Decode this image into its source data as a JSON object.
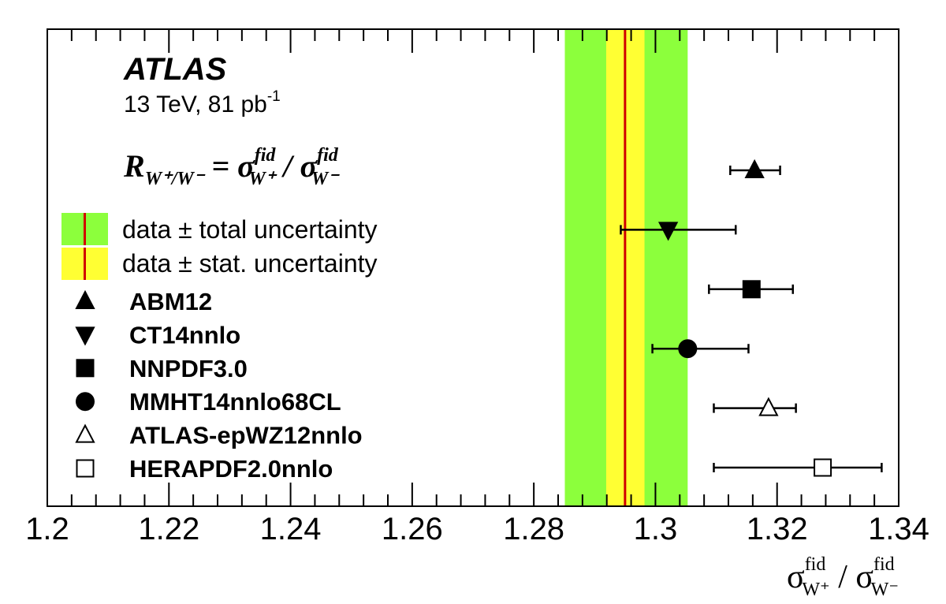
{
  "chart_data": {
    "type": "scatter",
    "title": "",
    "experiment": "ATLAS",
    "energy_label": "13 TeV, 81 pb",
    "lumi_superscript": "-1",
    "formula": {
      "lhs": "R",
      "lhs_sub": "W⁺/W⁻",
      "equals": " = σ",
      "num_sup": "fid",
      "num_sub": "W⁺",
      "divide": " / σ",
      "den_sup": "fid",
      "den_sub": "W⁻"
    },
    "xlabel": {
      "sigma": "σ",
      "num_sup": "fid",
      "num_sub": "W⁺",
      "slash": " / ",
      "den_sup": "fid",
      "den_sub": "W⁻"
    },
    "ylabel": "",
    "xlim": [
      1.2,
      1.34
    ],
    "x_ticks": [
      "1.2",
      "1.22",
      "1.24",
      "1.26",
      "1.28",
      "1.3",
      "1.32",
      "1.34"
    ],
    "x_tick_values": [
      1.2,
      1.22,
      1.24,
      1.26,
      1.28,
      1.3,
      1.32,
      1.34
    ],
    "grid": false,
    "legend_position": "left",
    "measurement": {
      "value": 1.295,
      "stat_band": [
        1.2919,
        1.2982
      ],
      "total_band": [
        1.2851,
        1.3053
      ],
      "total_label": "data ± total uncertainty",
      "stat_label": "data ± stat. uncertainty",
      "line_color": "#d00000",
      "total_color": "#8cff3c",
      "stat_color": "#ffff33"
    },
    "predictions": [
      {
        "name": "ABM12",
        "marker": "triangle-up",
        "filled": true,
        "value": 1.3163,
        "err_low": 1.3123,
        "err_high": 1.3205
      },
      {
        "name": "CT14nnlo",
        "marker": "triangle-down",
        "filled": true,
        "value": 1.3021,
        "err_low": 1.2943,
        "err_high": 1.3132
      },
      {
        "name": "NNPDF3.0",
        "marker": "square",
        "filled": true,
        "value": 1.3158,
        "err_low": 1.3088,
        "err_high": 1.3226
      },
      {
        "name": "MMHT14nnlo68CL",
        "marker": "circle",
        "filled": true,
        "value": 1.3053,
        "err_low": 1.2995,
        "err_high": 1.3153
      },
      {
        "name": "ATLAS-epWZ12nnlo",
        "marker": "triangle-up",
        "filled": false,
        "value": 1.3186,
        "err_low": 1.3096,
        "err_high": 1.3231
      },
      {
        "name": "HERAPDF2.0nnlo",
        "marker": "square",
        "filled": false,
        "value": 1.3275,
        "err_low": 1.3096,
        "err_high": 1.3372
      }
    ]
  }
}
